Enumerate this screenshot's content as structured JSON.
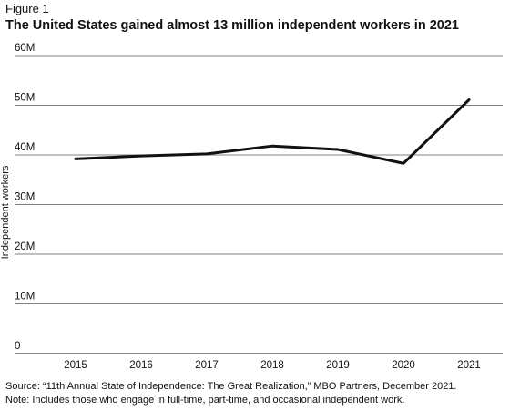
{
  "figure_label": "Figure 1",
  "title": "The United States gained almost 13 million independent workers in 2021",
  "chart_data": {
    "type": "line",
    "title": "The United States gained almost 13 million independent workers in 2021",
    "xlabel": "",
    "ylabel": "Independent workers",
    "x": [
      "2015",
      "2016",
      "2017",
      "2018",
      "2019",
      "2020",
      "2021"
    ],
    "series": [
      {
        "values": [
          39.2,
          39.8,
          40.2,
          41.8,
          41.1,
          38.3,
          51.1
        ]
      }
    ],
    "ylim": [
      0,
      60
    ],
    "yticks": [
      0,
      10,
      20,
      30,
      40,
      50,
      60
    ],
    "ytick_labels": [
      "0",
      "10M",
      "20M",
      "30M",
      "40M",
      "50M",
      "60M"
    ],
    "grid": "horizontal",
    "line_color": "#111111",
    "grid_color": "#555555"
  },
  "source_note": "Source: “11th Annual State of Independence: The Great Realization,” MBO Partners, December 2021.",
  "note": "Note: Includes those who engage in full-time, part-time, and occasional independent work."
}
